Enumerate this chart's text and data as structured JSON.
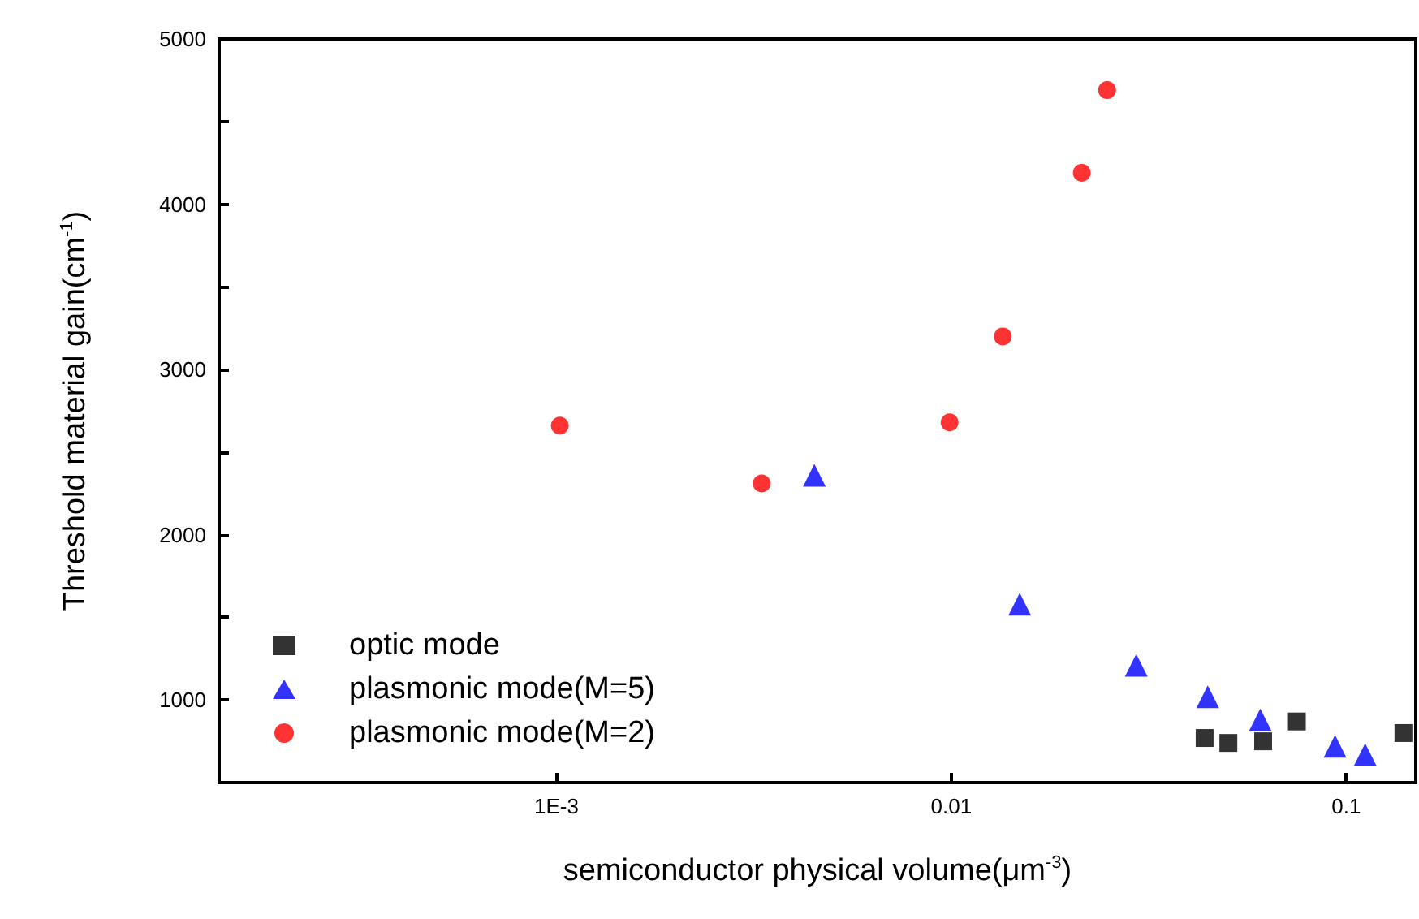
{
  "chart_data": {
    "type": "scatter",
    "xlabel": "semiconductor physical volume(μm$^{-3}$)",
    "ylabel": "Threshold material gain(cm$^{-1}$)",
    "log": "x",
    "xlim": [
      0.00014,
      0.15
    ],
    "xticks": [
      {
        "value": 0.001,
        "label": "1E-3"
      },
      0.01,
      0.1
    ],
    "ylim": [
      500,
      5000
    ],
    "yticks": [
      {
        "value": 500,
        "label": null
      },
      1000,
      {
        "value": 1500,
        "label": null
      },
      2000,
      {
        "value": 2500,
        "label": null
      },
      3000,
      {
        "value": 3500,
        "label": null
      },
      4000,
      {
        "value": 4500,
        "label": null
      },
      5000
    ],
    "grid": false,
    "legend": "bottom left",
    "series": [
      {
        "name": "optic mode",
        "color": "#000000",
        "marker": "square",
        "x": [
          0.0438,
          0.0503,
          0.0616,
          0.075,
          0.1396
        ],
        "values": [
          770,
          740,
          750,
          870,
          800
        ]
      },
      {
        "name": "plasmonic mode(M=5)",
        "color": "#0000ff",
        "marker": "triangle",
        "x": [
          0.0045,
          0.0149,
          0.0294,
          0.0446,
          0.0606,
          0.0937,
          0.1117
        ],
        "values": [
          2360,
          1580,
          1210,
          1020,
          880,
          720,
          670
        ]
      },
      {
        "name": "plasmonic mode(M=2)",
        "color": "#ff0000",
        "marker": "circle",
        "x": [
          0.00102,
          0.00331,
          0.0099,
          0.0135,
          0.0214,
          0.0248
        ],
        "values": [
          2660,
          2310,
          2680,
          3200,
          4190,
          4690
        ]
      }
    ]
  }
}
